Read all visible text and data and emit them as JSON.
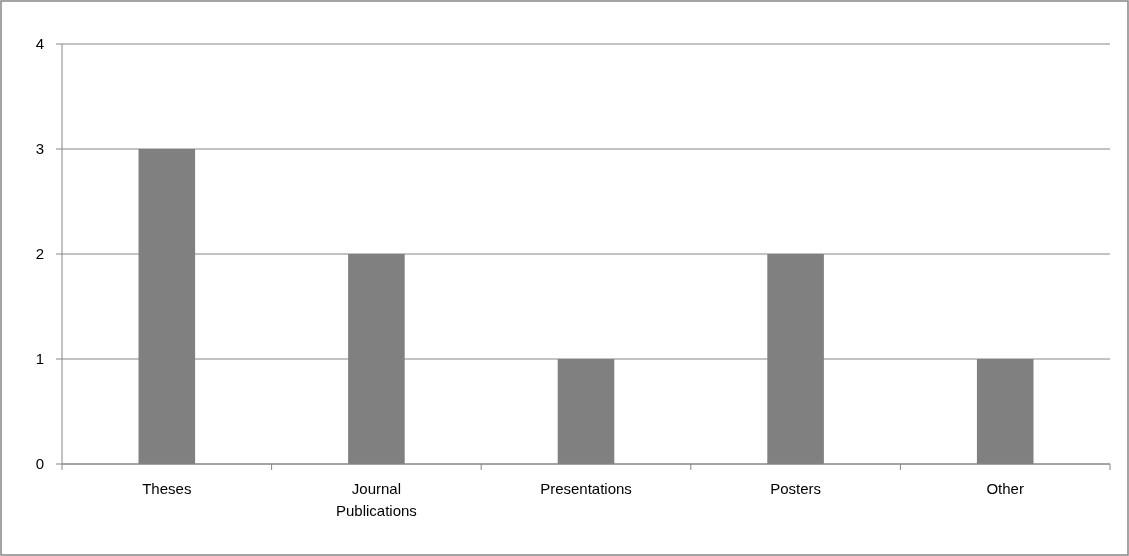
{
  "chart_data": {
    "type": "bar",
    "categories": [
      "Theses",
      "Journal Publications",
      "Presentations",
      "Posters",
      "Other"
    ],
    "values": [
      3,
      2,
      1,
      2,
      1
    ],
    "color": "#808080",
    "ylim": [
      0,
      4
    ],
    "yticks": [
      0,
      1,
      2,
      3,
      4
    ],
    "grid": "y"
  }
}
